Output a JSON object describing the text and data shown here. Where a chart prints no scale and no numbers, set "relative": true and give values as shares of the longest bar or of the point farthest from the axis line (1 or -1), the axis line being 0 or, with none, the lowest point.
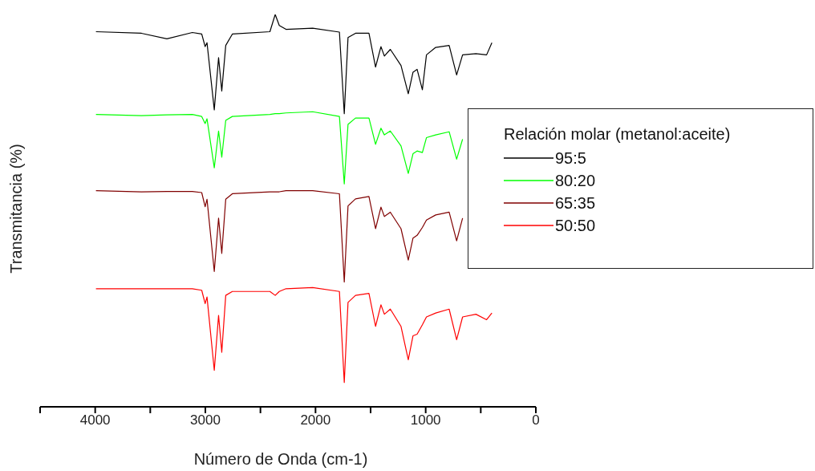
{
  "chart_data": {
    "type": "line",
    "relative": true,
    "xlabel": "Número de Onda (cm-1)",
    "ylabel": "Transmitancia (%)",
    "legend_title": "Relación molar (metanol:aceite)",
    "legend": "right",
    "xlim": [
      4500,
      0
    ],
    "xticks": [
      {
        "value": 4500,
        "label": null
      },
      4000,
      {
        "value": 3500,
        "label": null
      },
      3000,
      {
        "value": 2500,
        "label": null
      },
      2000,
      {
        "value": 1500,
        "label": null
      },
      1000,
      {
        "value": 500,
        "label": null
      },
      0
    ],
    "marker": "none",
    "line_style": "solid",
    "x": [
      3993,
      3580,
      3349,
      3118,
      3033,
      3002,
      2985,
      2919,
      2880,
      2851,
      2815,
      2755,
      2414,
      2366,
      2329,
      2268,
      2026,
      1783,
      1739,
      1705,
      1637,
      1515,
      1455,
      1406,
      1375,
      1321,
      1224,
      1158,
      1115,
      1078,
      1030,
      993,
      909,
      787,
      719,
      665,
      544,
      447,
      399
    ],
    "series": [
      {
        "name": "95:5",
        "color": "#000000",
        "values": [
          0.956,
          0.952,
          0.938,
          0.954,
          0.95,
          0.918,
          0.928,
          0.757,
          0.89,
          0.805,
          0.921,
          0.95,
          0.956,
          1,
          0.972,
          0.962,
          0.965,
          0.955,
          0.747,
          0.941,
          0.952,
          0.952,
          0.866,
          0.918,
          0.894,
          0.911,
          0.87,
          0.798,
          0.853,
          0.86,
          0.808,
          0.897,
          0.916,
          0.921,
          0.846,
          0.897,
          0.9,
          0.897,
          0.928
        ]
      },
      {
        "name": "80:20",
        "color": "#00ff00",
        "values": [
          0.745,
          0.742,
          0.744,
          0.745,
          0.74,
          0.722,
          0.734,
          0.609,
          0.703,
          0.636,
          0.73,
          0.74,
          0.745,
          0.747,
          0.747,
          0.749,
          0.752,
          0.74,
          0.568,
          0.72,
          0.736,
          0.736,
          0.669,
          0.71,
          0.693,
          0.703,
          0.665,
          0.595,
          0.645,
          0.652,
          0.648,
          0.686,
          0.693,
          0.701,
          0.631,
          0.682,
          null,
          null,
          null
        ]
      },
      {
        "name": "65:35",
        "color": "#800000",
        "values": [
          0.551,
          0.548,
          0.549,
          0.549,
          0.546,
          0.51,
          0.529,
          0.345,
          0.481,
          0.391,
          0.529,
          0.543,
          0.548,
          0.548,
          0.548,
          0.551,
          0.551,
          0.543,
          0.318,
          0.512,
          0.53,
          0.536,
          0.454,
          0.509,
          0.485,
          0.496,
          0.454,
          0.374,
          0.43,
          0.437,
          0.457,
          0.476,
          0.489,
          0.496,
          0.423,
          0.481,
          null,
          null,
          null
        ]
      },
      {
        "name": "50:50",
        "color": "#ff0000",
        "values": [
          0.301,
          0.301,
          0.301,
          0.301,
          0.297,
          0.263,
          0.28,
          0.093,
          0.233,
          0.139,
          0.284,
          0.294,
          0.294,
          0.284,
          0.294,
          0.301,
          0.304,
          0.294,
          0.062,
          0.266,
          0.284,
          0.289,
          0.205,
          0.26,
          0.236,
          0.249,
          0.205,
          0.12,
          0.181,
          0.185,
          0.209,
          0.229,
          0.239,
          0.249,
          0.171,
          0.229,
          0.236,
          0.222,
          0.239
        ]
      }
    ]
  }
}
